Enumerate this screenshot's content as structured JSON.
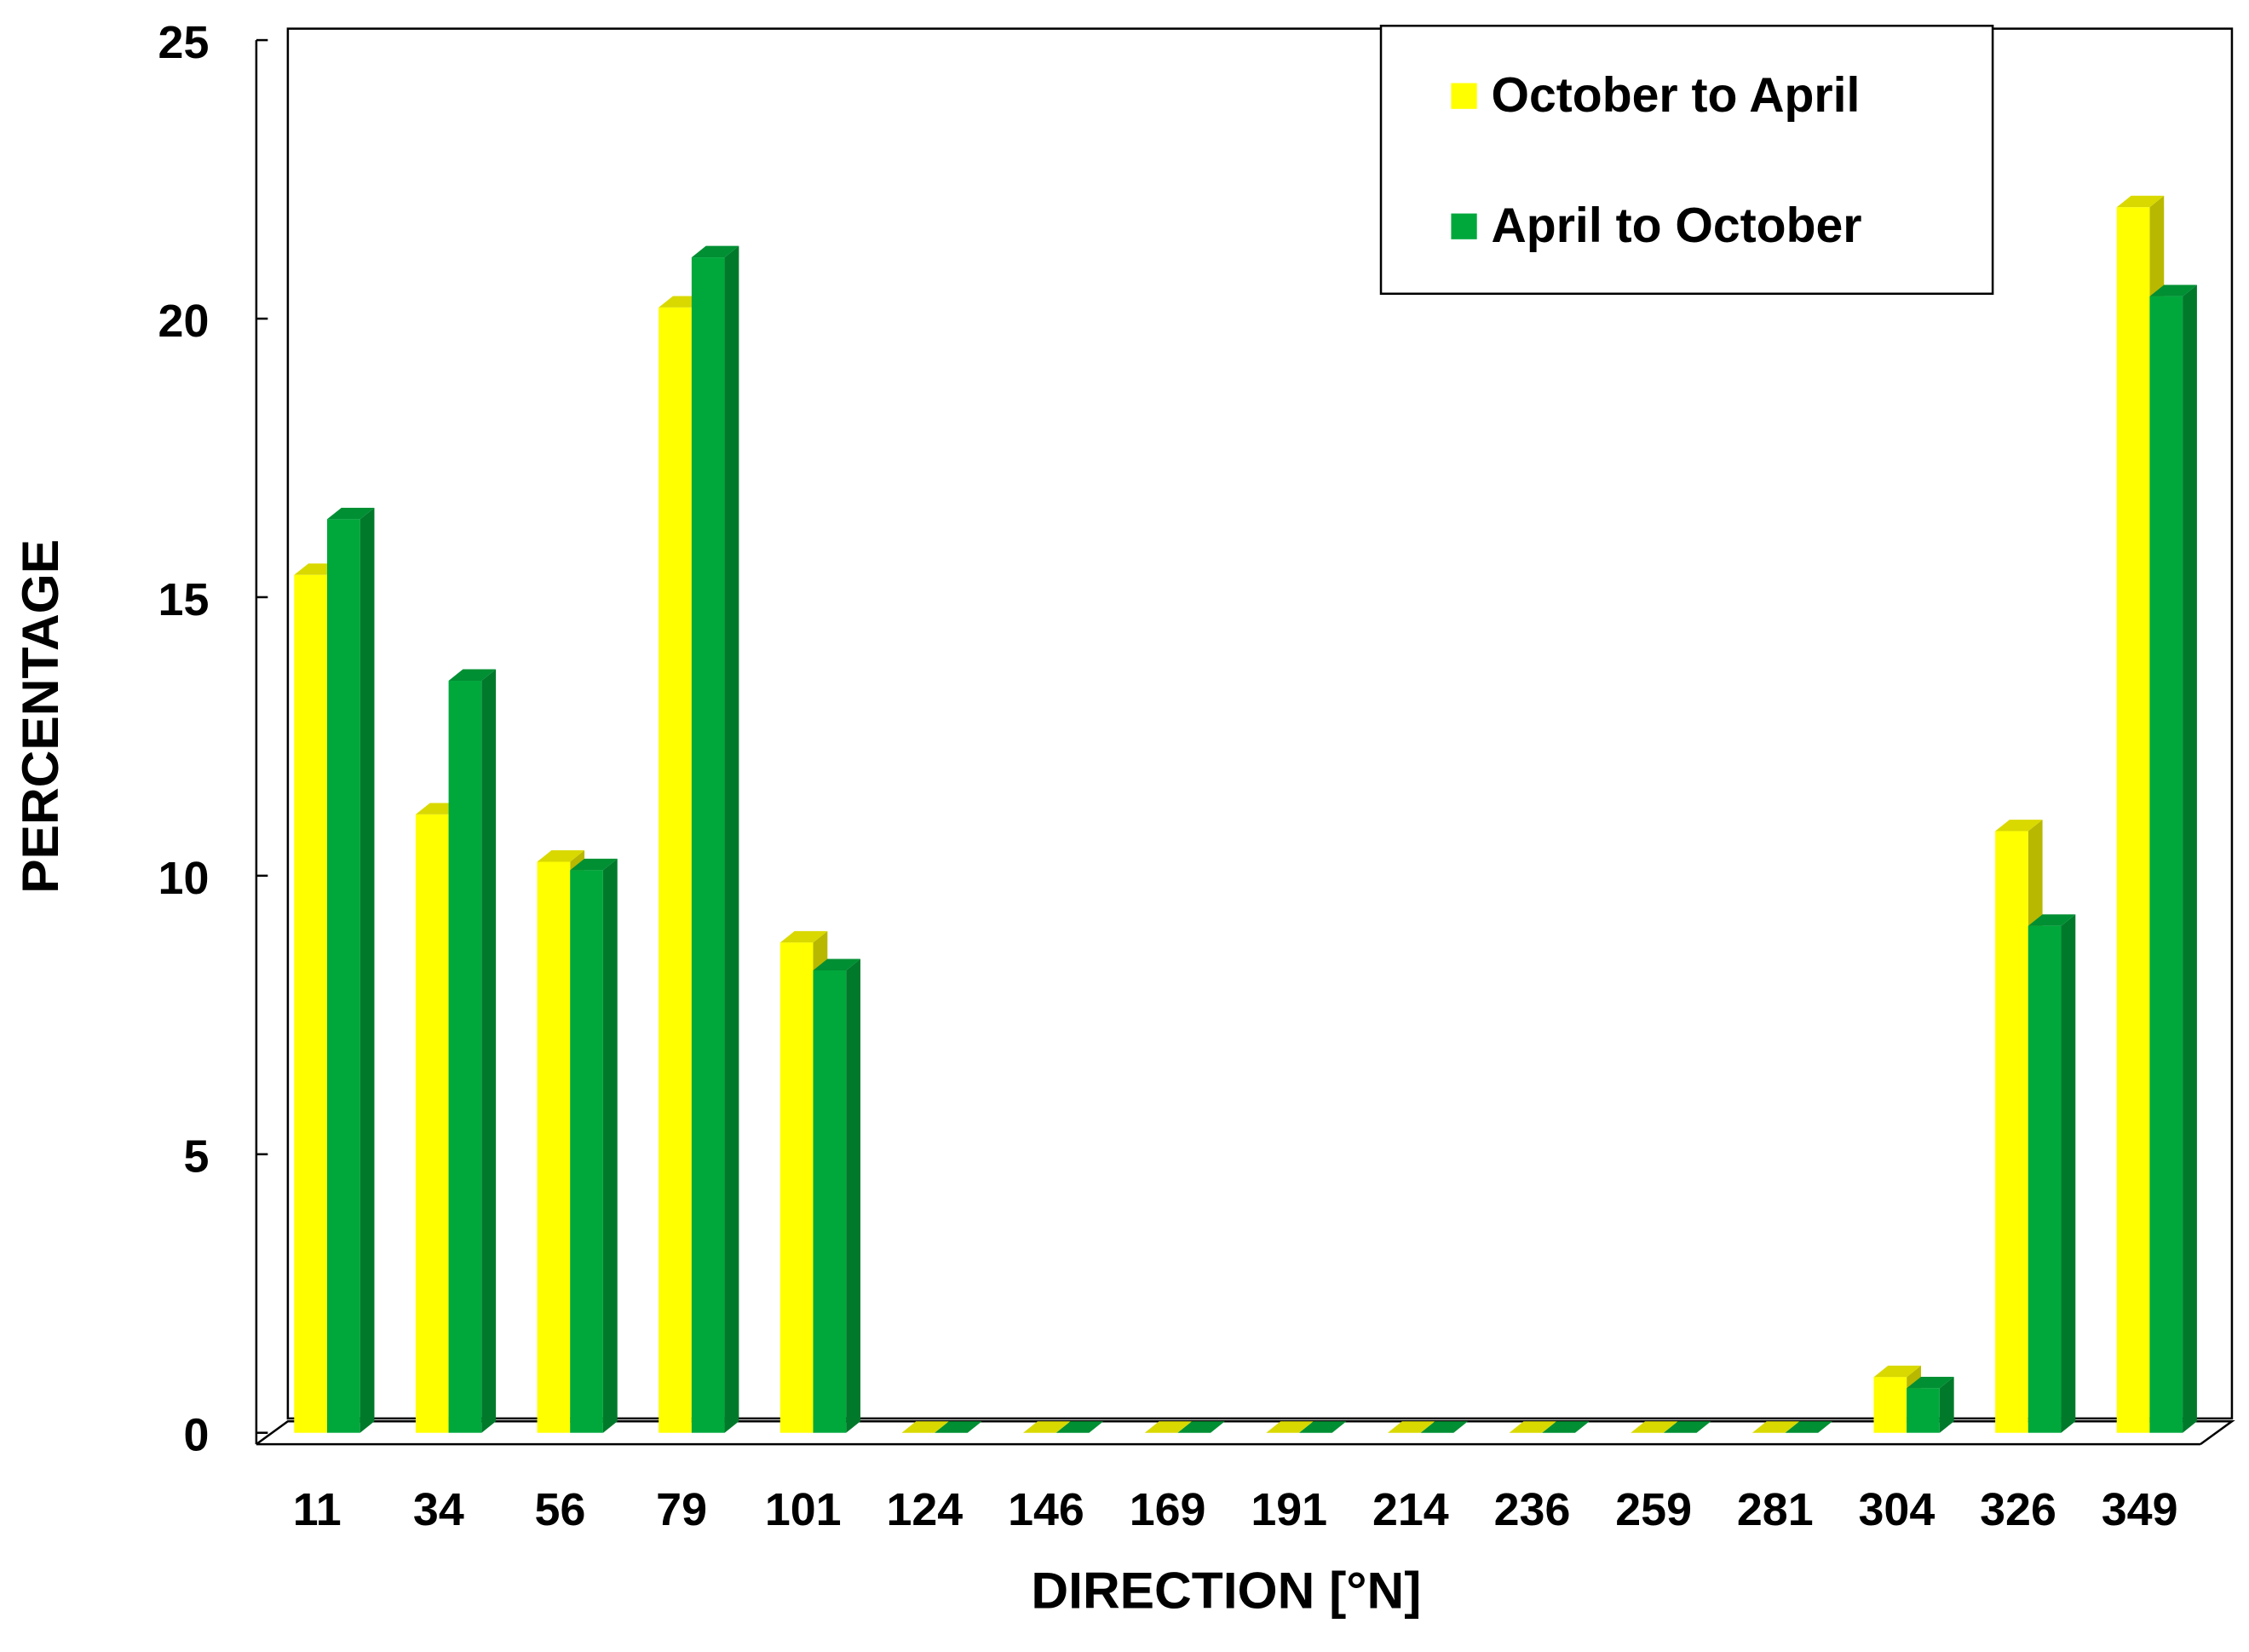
{
  "chart_data": {
    "type": "bar",
    "x_label": "DIRECTION [°N]",
    "y_label": "PERCENTAGE",
    "categories": [
      "11",
      "34",
      "56",
      "79",
      "101",
      "124",
      "146",
      "169",
      "191",
      "214",
      "236",
      "259",
      "281",
      "304",
      "326",
      "349"
    ],
    "series": [
      {
        "name": "October to April",
        "color": "#ffff00",
        "values": [
          15.4,
          11.1,
          10.25,
          20.2,
          8.8,
          0,
          0,
          0,
          0,
          0,
          0,
          0,
          0,
          1.0,
          10.8,
          22.0
        ]
      },
      {
        "name": "April to October",
        "color": "#00a83c",
        "values": [
          16.4,
          13.5,
          10.1,
          21.1,
          8.3,
          0,
          0,
          0,
          0,
          0,
          0,
          0,
          0,
          0.8,
          9.1,
          20.4
        ]
      }
    ],
    "ylim": [
      0,
      25
    ],
    "yticks": [
      0,
      5,
      10,
      15,
      20,
      25
    ],
    "legend": "top-right"
  }
}
